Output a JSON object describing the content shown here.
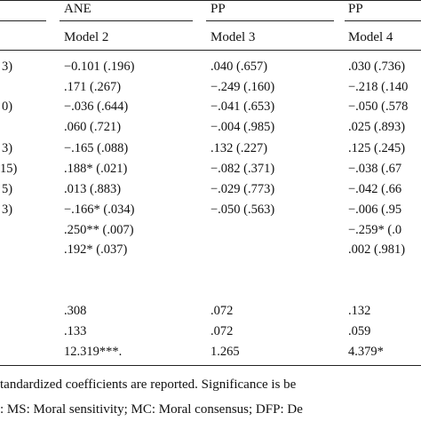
{
  "table": {
    "group_headers": [
      "ANE",
      "PP",
      "PP"
    ],
    "model_headers": [
      "Model 2",
      "Model 3",
      "Model 4"
    ],
    "left_fragments": [
      "3)",
      "",
      "0)",
      "",
      "3)",
      "15)",
      "5)",
      "3)"
    ],
    "col2": [
      "−0.101 (.196)",
      ".171 (.267)",
      "−.036 (.644)",
      ".060 (.721)",
      "−.165 (.088)",
      ".188* (.021)",
      ".013 (.883)",
      "−.166* (.034)",
      ".250** (.007)",
      ".192* (.037)"
    ],
    "col3": [
      ".040 (.657)",
      "−.249 (.160)",
      "−.041 (.653)",
      "−.004 (.985)",
      ".132 (.227)",
      "−.082 (.371)",
      "−.029 (.773)",
      "−.050 (.563)",
      "",
      ""
    ],
    "col4": [
      ".030 (.736)",
      "−.218 (.140",
      "−.050 (.578",
      ".025 (.893)",
      ".125 (.245)",
      "−.038 (.67",
      "−.042 (.66",
      "−.006 (.95",
      "−.259* (.0",
      ".002 (.981)"
    ],
    "summary_col2": [
      ".308",
      ".133",
      "12.319***."
    ],
    "summary_col3": [
      ".072",
      ".072",
      "1.265"
    ],
    "summary_col4": [
      ".132",
      ".059",
      "4.379*"
    ]
  },
  "footnotes": [
    "tandardized coefficients are reported. Significance is be",
    ": MS: Moral sensitivity; MC: Moral consensus; DFP: De"
  ]
}
